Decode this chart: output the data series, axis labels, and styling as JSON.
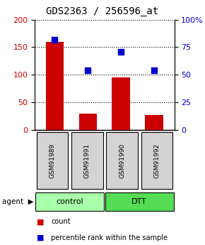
{
  "title": "GDS2363 / 256596_at",
  "samples": [
    "GSM91989",
    "GSM91991",
    "GSM91990",
    "GSM91992"
  ],
  "bar_values": [
    160,
    30,
    95,
    27
  ],
  "dot_values": [
    82,
    54,
    71,
    54
  ],
  "bar_color": "#cc0000",
  "dot_color": "#0000cc",
  "left_ylim": [
    0,
    200
  ],
  "right_ylim": [
    0,
    100
  ],
  "left_yticks": [
    0,
    50,
    100,
    150,
    200
  ],
  "right_yticks": [
    0,
    25,
    50,
    75,
    100
  ],
  "right_yticklabels": [
    "0",
    "25",
    "50",
    "75",
    "100%"
  ],
  "groups": [
    {
      "label": "control",
      "indices": [
        0,
        1
      ],
      "color": "#aaffaa"
    },
    {
      "label": "DTT",
      "indices": [
        2,
        3
      ],
      "color": "#55dd55"
    }
  ],
  "agent_label": "agent",
  "legend_bar_label": "count",
  "legend_dot_label": "percentile rank within the sample",
  "bar_width": 0.55,
  "title_fontsize": 10
}
